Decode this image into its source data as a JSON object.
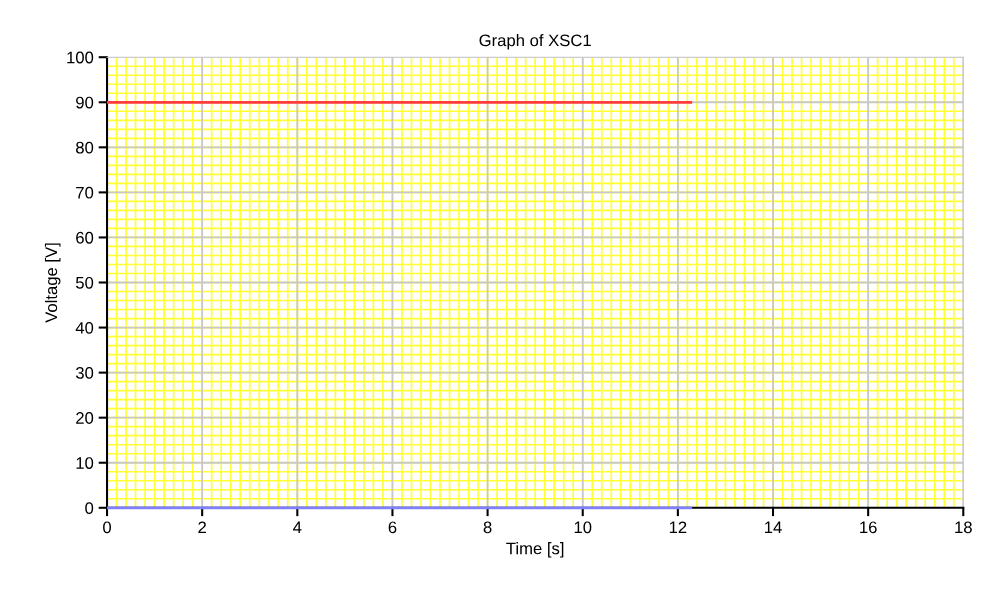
{
  "chart_data": {
    "type": "line",
    "title": "Graph of XSC1",
    "xlabel": "Time [s]",
    "ylabel": "Voltage [V]",
    "series": [
      {
        "color": "#ff3b3b",
        "values": [
          90,
          90
        ]
      },
      {
        "color": "#8080ff",
        "values": [
          0,
          0
        ]
      }
    ],
    "x": [
      0,
      12.3
    ],
    "xlim": [
      0,
      18
    ],
    "xticks": [
      0,
      2,
      4,
      6,
      8,
      10,
      12,
      14,
      16,
      18
    ],
    "ylim": [
      0,
      100
    ],
    "yticks": [
      0,
      10,
      20,
      30,
      40,
      50,
      60,
      70,
      80,
      90,
      100
    ],
    "grid": true,
    "marker": "none",
    "line_style": "solid"
  }
}
